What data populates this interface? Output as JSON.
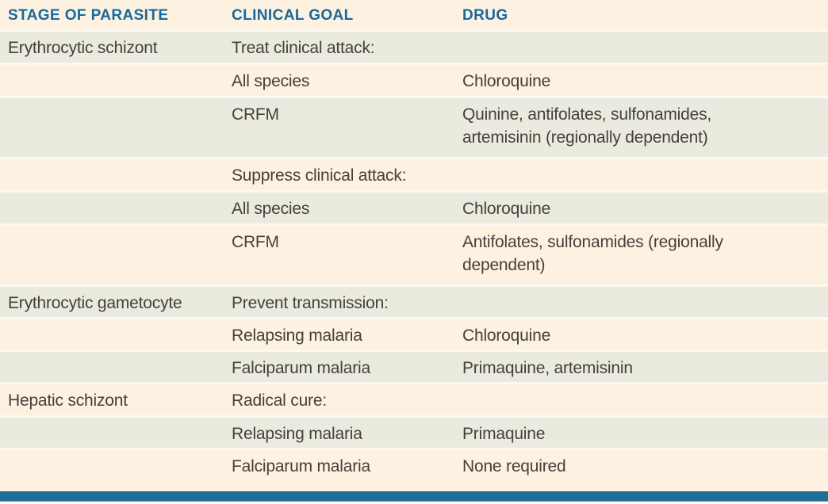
{
  "table": {
    "columns": {
      "stage": "STAGE OF PARASITE",
      "goal": "CLINICAL GOAL",
      "drug": "DRUG"
    },
    "rows": [
      {
        "stage": "Erythrocytic schizont",
        "goal": "Treat clinical attack:",
        "drug": ""
      },
      {
        "stage": "",
        "goal": "All species",
        "drug": "Chloroquine"
      },
      {
        "stage": "",
        "goal": "CRFM",
        "drug": "Quinine, antifolates, sulfonamides, artemisinin (regionally dependent)"
      },
      {
        "stage": "",
        "goal": "Suppress clinical attack:",
        "drug": ""
      },
      {
        "stage": "",
        "goal": "All species",
        "drug": "Chloroquine"
      },
      {
        "stage": "",
        "goal": "CRFM",
        "drug": "Antifolates, sulfonamides (regionally dependent)"
      },
      {
        "stage": "Erythrocytic gametocyte",
        "goal": "Prevent transmission:",
        "drug": ""
      },
      {
        "stage": "",
        "goal": "Relapsing malaria",
        "drug": "Chloroquine"
      },
      {
        "stage": "",
        "goal": "Falciparum malaria",
        "drug": "Primaquine, artemisinin"
      },
      {
        "stage": "Hepatic schizont",
        "goal": "Radical cure:",
        "drug": ""
      },
      {
        "stage": "",
        "goal": "Relapsing malaria",
        "drug": "Primaquine"
      },
      {
        "stage": "",
        "goal": "Falciparum malaria",
        "drug": "None required"
      }
    ]
  },
  "colors": {
    "header_text_blue": "#17699b",
    "bottom_bar_blue": "#1e6e96",
    "row_cream": "#fdf1e1",
    "row_gray": "#eaeadf",
    "body_text": "#44413a"
  }
}
